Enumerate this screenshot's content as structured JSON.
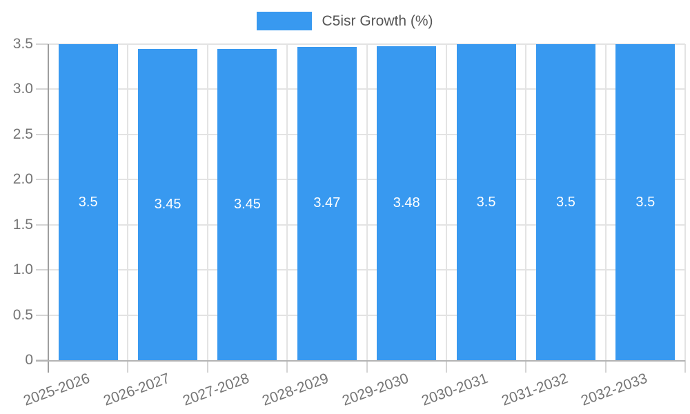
{
  "chart_data": {
    "type": "bar",
    "title": "C5isr Growth (%)",
    "legend": {
      "label": "C5isr Growth (%)",
      "position": "top-center"
    },
    "categories": [
      "2025-2026",
      "2026-2027",
      "2027-2028",
      "2028-2029",
      "2029-2030",
      "2030-2031",
      "2031-2032",
      "2032-2033"
    ],
    "values": [
      3.5,
      3.45,
      3.45,
      3.47,
      3.48,
      3.5,
      3.5,
      3.5
    ],
    "value_labels": [
      "3.5",
      "3.45",
      "3.45",
      "3.47",
      "3.48",
      "3.5",
      "3.5",
      "3.5"
    ],
    "xlabel": "",
    "ylabel": "",
    "ylim": [
      0,
      3.5
    ],
    "ytick_step": 0.5,
    "ytick_labels": [
      "0",
      "0.5",
      "1.0",
      "1.5",
      "2.0",
      "2.5",
      "3.0",
      "3.5"
    ],
    "grid": true,
    "colors": {
      "bar": "#3899f0",
      "value_label": "#ffffff",
      "gridline": "#e3e3e3",
      "y_axis_line": "#9e9e9e",
      "x_axis_line": "#b3b3b3",
      "tick": "#d4d4d4",
      "axis_label_text": "#757575",
      "legend_text": "#565656"
    }
  }
}
